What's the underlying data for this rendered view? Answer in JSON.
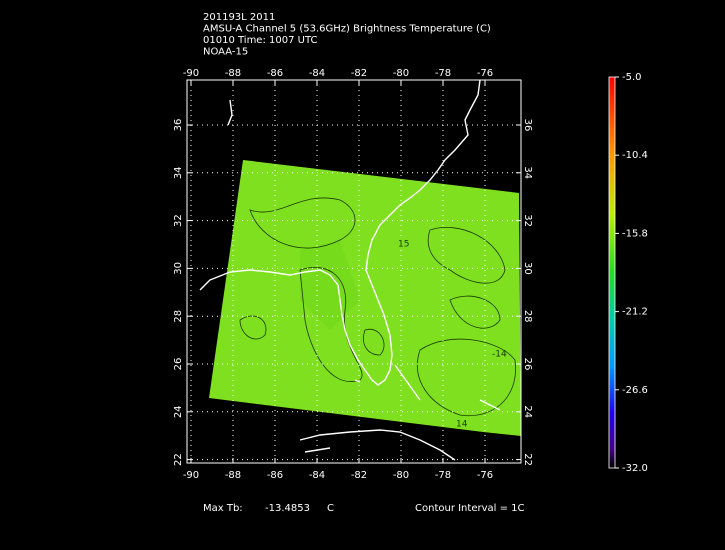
{
  "header": {
    "lines": [
      "201193L 2011",
      "AMSU-A Channel 5 (53.6GHz) Brightness Temperature (C)",
      "01010 Time: 1007 UTC",
      "NOAA-15"
    ]
  },
  "map": {
    "lon_ticks": [
      -90,
      -88,
      -86,
      -84,
      -82,
      -80,
      -78,
      -76
    ],
    "lat_ticks": [
      22,
      24,
      26,
      28,
      30,
      32,
      34,
      36
    ],
    "contour_labels": [
      "15",
      "-14",
      "14"
    ]
  },
  "colorbar": {
    "ticks": [
      {
        "value": -5,
        "label": "-5.0"
      },
      {
        "value": -10.4,
        "label": "-10.4"
      },
      {
        "value": -15.8,
        "label": "-15.8"
      },
      {
        "value": -21.2,
        "label": "-21.2"
      },
      {
        "value": -26.6,
        "label": "-26.6"
      },
      {
        "value": -32,
        "label": "-32.0"
      }
    ]
  },
  "footer": {
    "max_label": "Max Tb:",
    "max_value": "-13.4853",
    "max_unit": "C",
    "contour_interval": "Contour Interval = 1C"
  }
}
